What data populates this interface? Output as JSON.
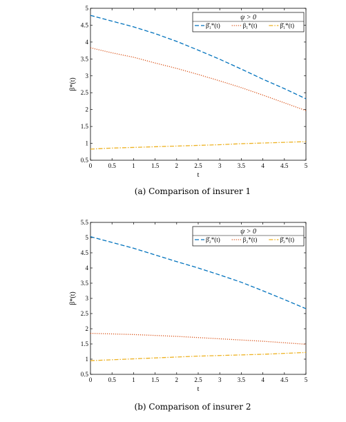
{
  "figure": {
    "captions": [
      "(a)  Comparison of insurer 1",
      "(b)  Comparison of insurer 2"
    ]
  },
  "chart_data": [
    {
      "type": "line",
      "xlabel": "t",
      "ylabel": "β*(t)",
      "xlim": [
        0,
        5
      ],
      "ylim": [
        0.5,
        5
      ],
      "xticks": [
        "0",
        "0.5",
        "1",
        "1.5",
        "2",
        "2.5",
        "3",
        "3.5",
        "4",
        "4.5",
        "5"
      ],
      "yticks": [
        "0.5",
        "1",
        "1.5",
        "2",
        "2.5",
        "3",
        "3.5",
        "4",
        "4.5",
        "5"
      ],
      "legend": {
        "title": "ψ > 0",
        "placement": "top-right"
      },
      "x": [
        0,
        0.5,
        1,
        1.5,
        2,
        2.5,
        3,
        3.5,
        4,
        4.5,
        5
      ],
      "series": [
        {
          "name": "β̂₁*(t)",
          "color": "#0072BD",
          "style": "dashed",
          "values": [
            4.79,
            4.62,
            4.45,
            4.25,
            4.02,
            3.76,
            3.49,
            3.2,
            2.9,
            2.62,
            2.32
          ]
        },
        {
          "name": "β₁*(t)",
          "color": "#D95319",
          "style": "dotted",
          "values": [
            3.83,
            3.68,
            3.55,
            3.38,
            3.22,
            3.04,
            2.85,
            2.65,
            2.43,
            2.2,
            1.97
          ]
        },
        {
          "name": "β̌₁*(t)",
          "color": "#EDB120",
          "style": "dashdot",
          "values": [
            0.83,
            0.86,
            0.88,
            0.9,
            0.92,
            0.94,
            0.96,
            0.99,
            1.01,
            1.03,
            1.05
          ]
        }
      ]
    },
    {
      "type": "line",
      "xlabel": "t",
      "ylabel": "β*(t)",
      "xlim": [
        0,
        5
      ],
      "ylim": [
        0.5,
        5.5
      ],
      "xticks": [
        "0",
        "0.5",
        "1",
        "1.5",
        "2",
        "2.5",
        "3",
        "3.5",
        "4",
        "4.5",
        "5"
      ],
      "yticks": [
        "0.5",
        "1",
        "1.5",
        "2",
        "2.5",
        "3",
        "3.5",
        "4",
        "4.5",
        "5",
        "5.5"
      ],
      "legend": {
        "title": "ψ > 0",
        "placement": "top-right"
      },
      "x": [
        0,
        0.5,
        1,
        1.5,
        2,
        2.5,
        3,
        3.5,
        4,
        4.5,
        5
      ],
      "series": [
        {
          "name": "β̂₂*(t)",
          "color": "#0072BD",
          "style": "dashed",
          "values": [
            5.03,
            4.84,
            4.65,
            4.43,
            4.21,
            4.0,
            3.77,
            3.53,
            3.25,
            2.96,
            2.66
          ]
        },
        {
          "name": "β₂*(t)",
          "color": "#D95319",
          "style": "dotted",
          "values": [
            1.85,
            1.83,
            1.81,
            1.78,
            1.75,
            1.71,
            1.67,
            1.63,
            1.59,
            1.54,
            1.49
          ]
        },
        {
          "name": "β̌₂*(t)",
          "color": "#EDB120",
          "style": "dashdot",
          "values": [
            0.95,
            0.98,
            1.01,
            1.04,
            1.07,
            1.1,
            1.12,
            1.14,
            1.16,
            1.19,
            1.22
          ]
        }
      ]
    }
  ]
}
